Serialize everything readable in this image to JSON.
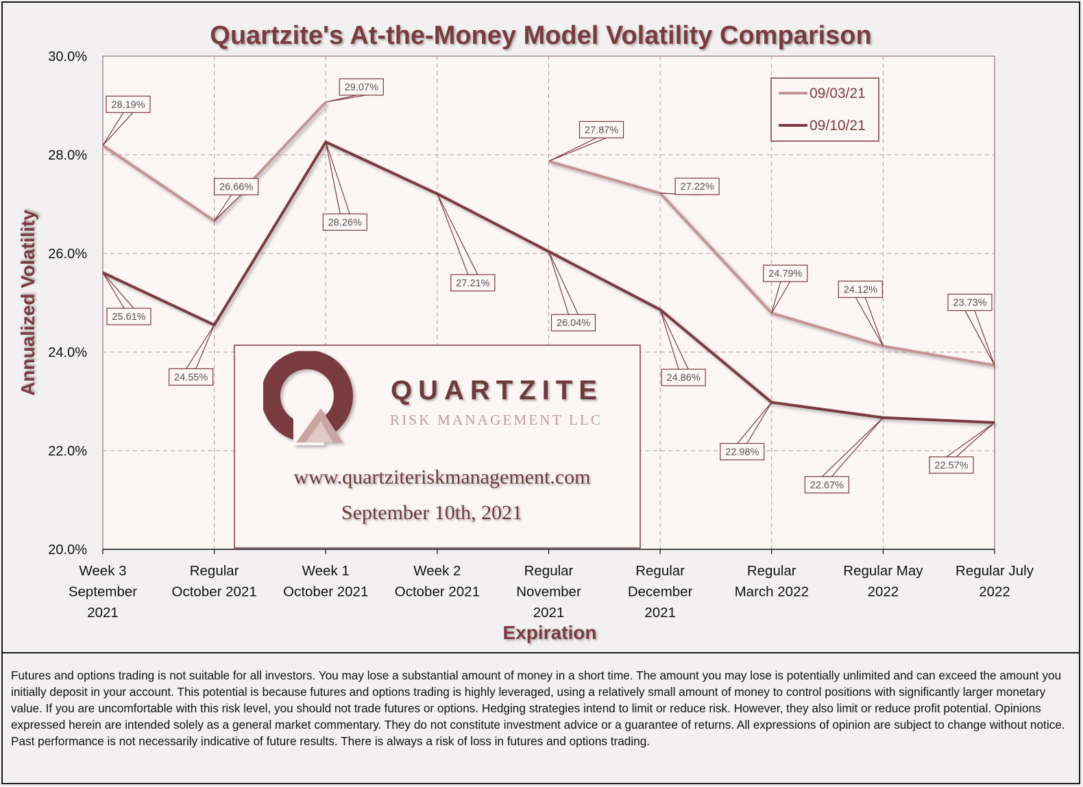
{
  "chart_data": {
    "type": "line",
    "title": "Quartzite's At-the-Money Model Volatility Comparison",
    "xlabel": "Expiration",
    "ylabel": "Annualized Volatility",
    "ylim": [
      20,
      30
    ],
    "y_ticks": [
      "20.0%",
      "22.0%",
      "24.0%",
      "26.0%",
      "28.0%",
      "30.0%"
    ],
    "y_tick_values": [
      20,
      22,
      24,
      26,
      28,
      30
    ],
    "categories": [
      [
        "Week 3",
        "September",
        "2021"
      ],
      [
        "Regular",
        "October 2021"
      ],
      [
        "Week 1",
        "October 2021"
      ],
      [
        "Week 2",
        "October 2021"
      ],
      [
        "Regular",
        "November",
        "2021"
      ],
      [
        "Regular",
        "December",
        "2021"
      ],
      [
        "Regular",
        "March 2022"
      ],
      [
        "Regular May",
        "2022"
      ],
      [
        "Regular July",
        "2022"
      ]
    ],
    "grid": true,
    "legend_position": "top-right",
    "series": [
      {
        "name": "09/03/21",
        "color": "#c49494",
        "values": [
          28.19,
          26.66,
          29.07,
          null,
          27.87,
          27.22,
          24.79,
          24.12,
          23.73
        ],
        "labels": [
          "28.19%",
          "26.66%",
          "29.07%",
          null,
          "27.87%",
          "27.22%",
          "24.79%",
          "24.12%",
          "23.73%"
        ]
      },
      {
        "name": "09/10/21",
        "color": "#7a3a3f",
        "values": [
          25.61,
          24.55,
          28.26,
          27.21,
          26.04,
          24.86,
          22.98,
          22.67,
          22.57
        ],
        "labels": [
          "25.61%",
          "24.55%",
          "28.26%",
          "27.21%",
          "26.04%",
          "24.86%",
          "22.98%",
          "22.67%",
          "22.57%"
        ]
      }
    ]
  },
  "branding": {
    "name": "QUARTZITE",
    "subtitle": "RISK MANAGEMENT LLC",
    "url": "www.quartziteriskmanagement.com",
    "date": "September 10th, 2021"
  },
  "disclaimer": "Futures and options trading is not suitable for all investors. You may lose a substantial amount of money in a short time. The amount you may lose is potentially unlimited and can exceed the amount you initially deposit in your account. This potential is because futures and options trading is highly leveraged, using a relatively small amount of money to control positions with significantly larger monetary value. If you are uncomfortable with this risk level, you should not trade futures or options. Hedging strategies intend to limit or reduce risk. However, they also limit or reduce profit potential. Opinions expressed herein are intended solely as a general market commentary. They do not constitute investment advice or a guarantee of returns. All expressions of opinion are subject to change without notice. Past performance is not necessarily indicative of future results. There is always a risk of loss in futures and options trading."
}
